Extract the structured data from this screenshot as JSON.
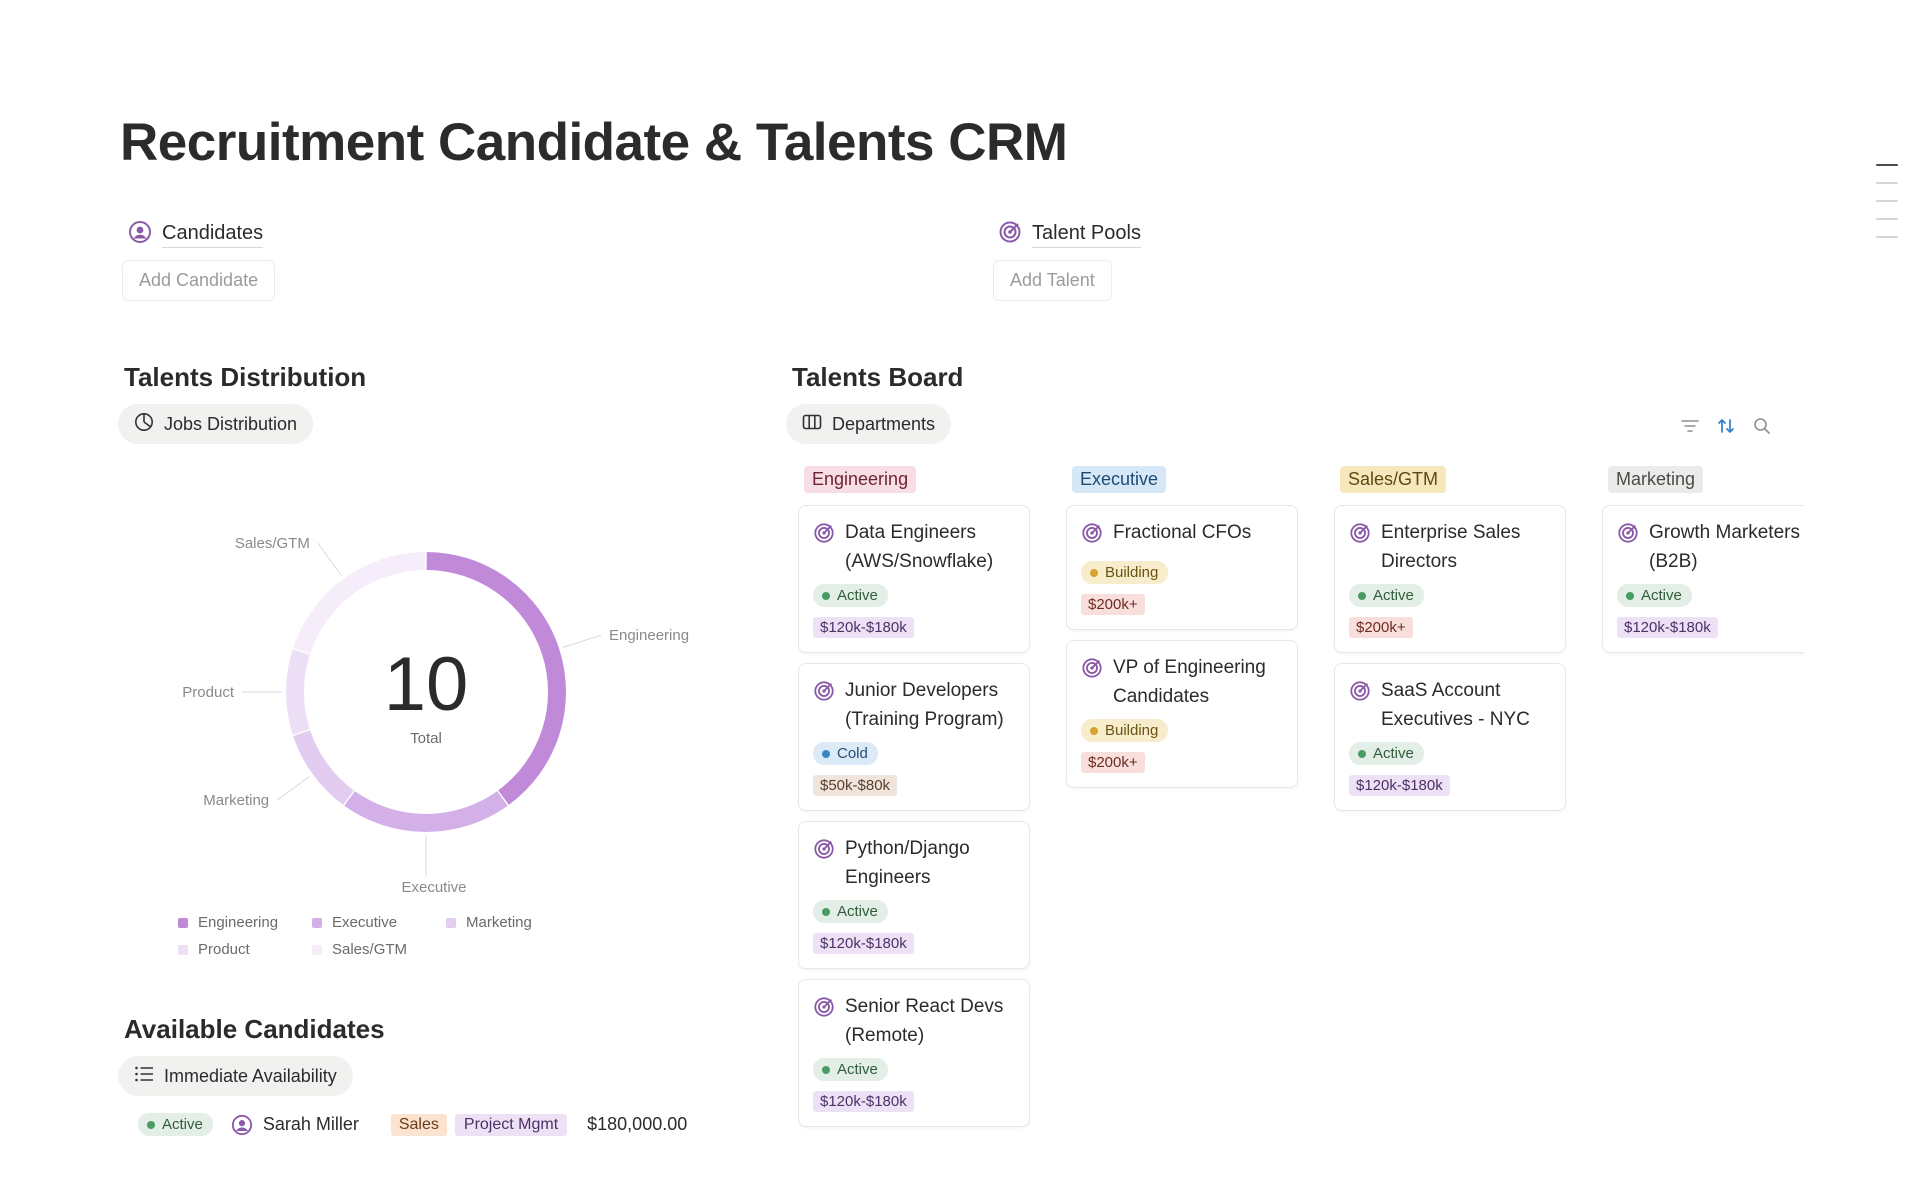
{
  "page": {
    "title": "Recruitment Candidate & Talents CRM"
  },
  "links": {
    "candidates": {
      "label": "Candidates",
      "button": "Add Candidate"
    },
    "talent_pools": {
      "label": "Talent Pools",
      "button": "Add Talent"
    }
  },
  "distribution": {
    "heading": "Talents Distribution",
    "view_label": "Jobs Distribution",
    "total_value": "10",
    "total_label": "Total"
  },
  "chart_data": {
    "type": "pie",
    "categories": [
      "Engineering",
      "Executive",
      "Marketing",
      "Product",
      "Sales/GTM"
    ],
    "values": [
      4,
      2,
      1,
      1,
      2
    ],
    "colors": [
      "#c08ad8",
      "#d4b0e8",
      "#e2cdf0",
      "#ecdff6",
      "#f5eefa"
    ],
    "legend_position": "bottom"
  },
  "board": {
    "heading": "Talents Board",
    "view_label": "Departments",
    "columns": [
      {
        "name": "Engineering",
        "bg": "#f7dde4",
        "fg": "#6d2337",
        "cards": [
          {
            "title": "Data Engineers (AWS/Snowflake)",
            "status": "Active",
            "status_type": "active",
            "salary": "$120k-$180k",
            "salary_type": "purple"
          },
          {
            "title": "Junior Developers (Training Program)",
            "status": "Cold",
            "status_type": "cold",
            "salary": "$50k-$80k",
            "salary_type": "brown"
          },
          {
            "title": "Python/Django Engineers",
            "status": "Active",
            "status_type": "active",
            "salary": "$120k-$180k",
            "salary_type": "purple"
          },
          {
            "title": "Senior React Devs (Remote)",
            "status": "Active",
            "status_type": "active",
            "salary": "$120k-$180k",
            "salary_type": "purple"
          }
        ]
      },
      {
        "name": "Executive",
        "bg": "#d6e8f7",
        "fg": "#1e4a72",
        "cards": [
          {
            "title": "Fractional CFOs",
            "status": "Building",
            "status_type": "building",
            "salary": "$200k+",
            "salary_type": "red"
          },
          {
            "title": "VP of Engineering Candidates",
            "status": "Building",
            "status_type": "building",
            "salary": "$200k+",
            "salary_type": "red"
          }
        ]
      },
      {
        "name": "Sales/GTM",
        "bg": "#f6e7bd",
        "fg": "#5e4a0f",
        "cards": [
          {
            "title": "Enterprise Sales Directors",
            "status": "Active",
            "status_type": "active",
            "salary": "$200k+",
            "salary_type": "red"
          },
          {
            "title": "SaaS Account Executives - NYC",
            "status": "Active",
            "status_type": "active",
            "salary": "$120k-$180k",
            "salary_type": "purple"
          }
        ]
      },
      {
        "name": "Marketing",
        "bg": "#ebebea",
        "fg": "#4a4a48",
        "cards": [
          {
            "title": "Growth Marketers (B2B)",
            "status": "Active",
            "status_type": "active",
            "salary": "$120k-$180k",
            "salary_type": "purple"
          }
        ]
      }
    ]
  },
  "available": {
    "heading": "Available Candidates",
    "view_label": "Immediate Availability",
    "rows": [
      {
        "status": "Active",
        "name": "Sarah Miller",
        "tags": [
          "Sales",
          "Project Mgmt"
        ],
        "salary": "$180,000.00"
      }
    ]
  },
  "icons": {
    "candidates": "user-circle-icon",
    "talent_pools": "target-icon",
    "jobs_view": "pie-chart-icon",
    "departments_view": "columns-icon",
    "availability_view": "list-icon",
    "filter": "filter-icon",
    "sort": "sort-icon",
    "search": "search-icon"
  }
}
